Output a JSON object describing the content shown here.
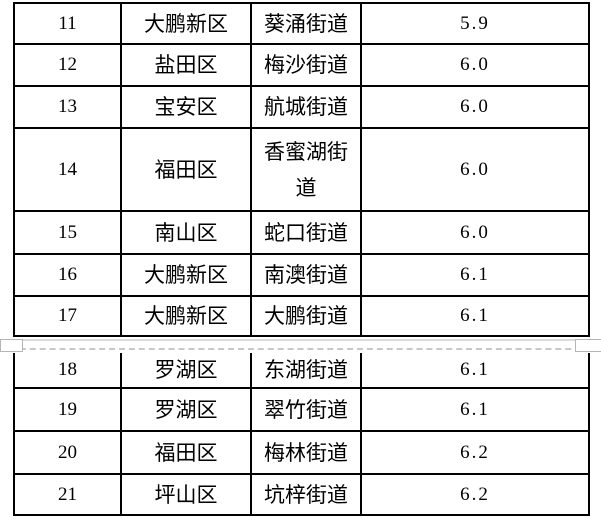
{
  "table": {
    "rows": [
      {
        "rank": "11",
        "district": "大鹏新区",
        "street": "葵涌街道",
        "value": "5.9"
      },
      {
        "rank": "12",
        "district": "盐田区",
        "street": "梅沙街道",
        "value": "6.0"
      },
      {
        "rank": "13",
        "district": "宝安区",
        "street": "航城街道",
        "value": "6.0"
      },
      {
        "rank": "14",
        "district": "福田区",
        "street": "香蜜湖街道",
        "value": "6.0"
      },
      {
        "rank": "15",
        "district": "南山区",
        "street": "蛇口街道",
        "value": "6.0"
      },
      {
        "rank": "16",
        "district": "大鹏新区",
        "street": "南澳街道",
        "value": "6.1"
      },
      {
        "rank": "17",
        "district": "大鹏新区",
        "street": "大鹏街道",
        "value": "6.1"
      },
      {
        "rank": "18",
        "district": "罗湖区",
        "street": "东湖街道",
        "value": "6.1"
      },
      {
        "rank": "19",
        "district": "罗湖区",
        "street": "翠竹街道",
        "value": "6.1"
      },
      {
        "rank": "20",
        "district": "福田区",
        "street": "梅林街道",
        "value": "6.2"
      },
      {
        "rank": "21",
        "district": "坪山区",
        "street": "坑梓街道",
        "value": "6.2"
      }
    ]
  },
  "colors": {
    "table_border": "#000000",
    "text": "#000000",
    "background": "#ffffff",
    "page_break_solid_line": "#dcdcdc",
    "page_break_dashed_line": "#c8c8c8",
    "page_break_notch_border": "#b5b5b5"
  }
}
